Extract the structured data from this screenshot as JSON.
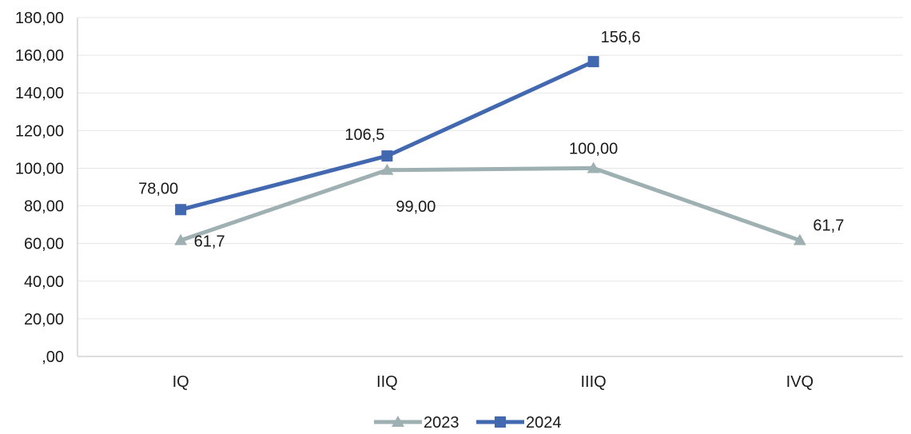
{
  "chart_data": {
    "type": "line",
    "categories": [
      "IQ",
      "IIQ",
      "IIIQ",
      "IVQ"
    ],
    "y_tick_labels": [
      ",00",
      "20,00",
      "40,00",
      "60,00",
      "80,00",
      "100,00",
      "120,00",
      "140,00",
      "160,00",
      "180,00"
    ],
    "ylim": [
      0,
      180
    ],
    "grid": true,
    "legend_position": "bottom",
    "series": [
      {
        "name": "2023",
        "color": "#9fb0b2",
        "marker": "triangle",
        "values": [
          61.7,
          99.0,
          100.0,
          61.7
        ],
        "labels": [
          "61,7",
          "99,00",
          "100,00",
          "61,7"
        ]
      },
      {
        "name": "2024",
        "color": "#4268b0",
        "marker": "square",
        "values": [
          78.0,
          106.5,
          156.6,
          null
        ],
        "labels": [
          "78,00",
          "106,5",
          "156,6",
          null
        ]
      }
    ]
  }
}
